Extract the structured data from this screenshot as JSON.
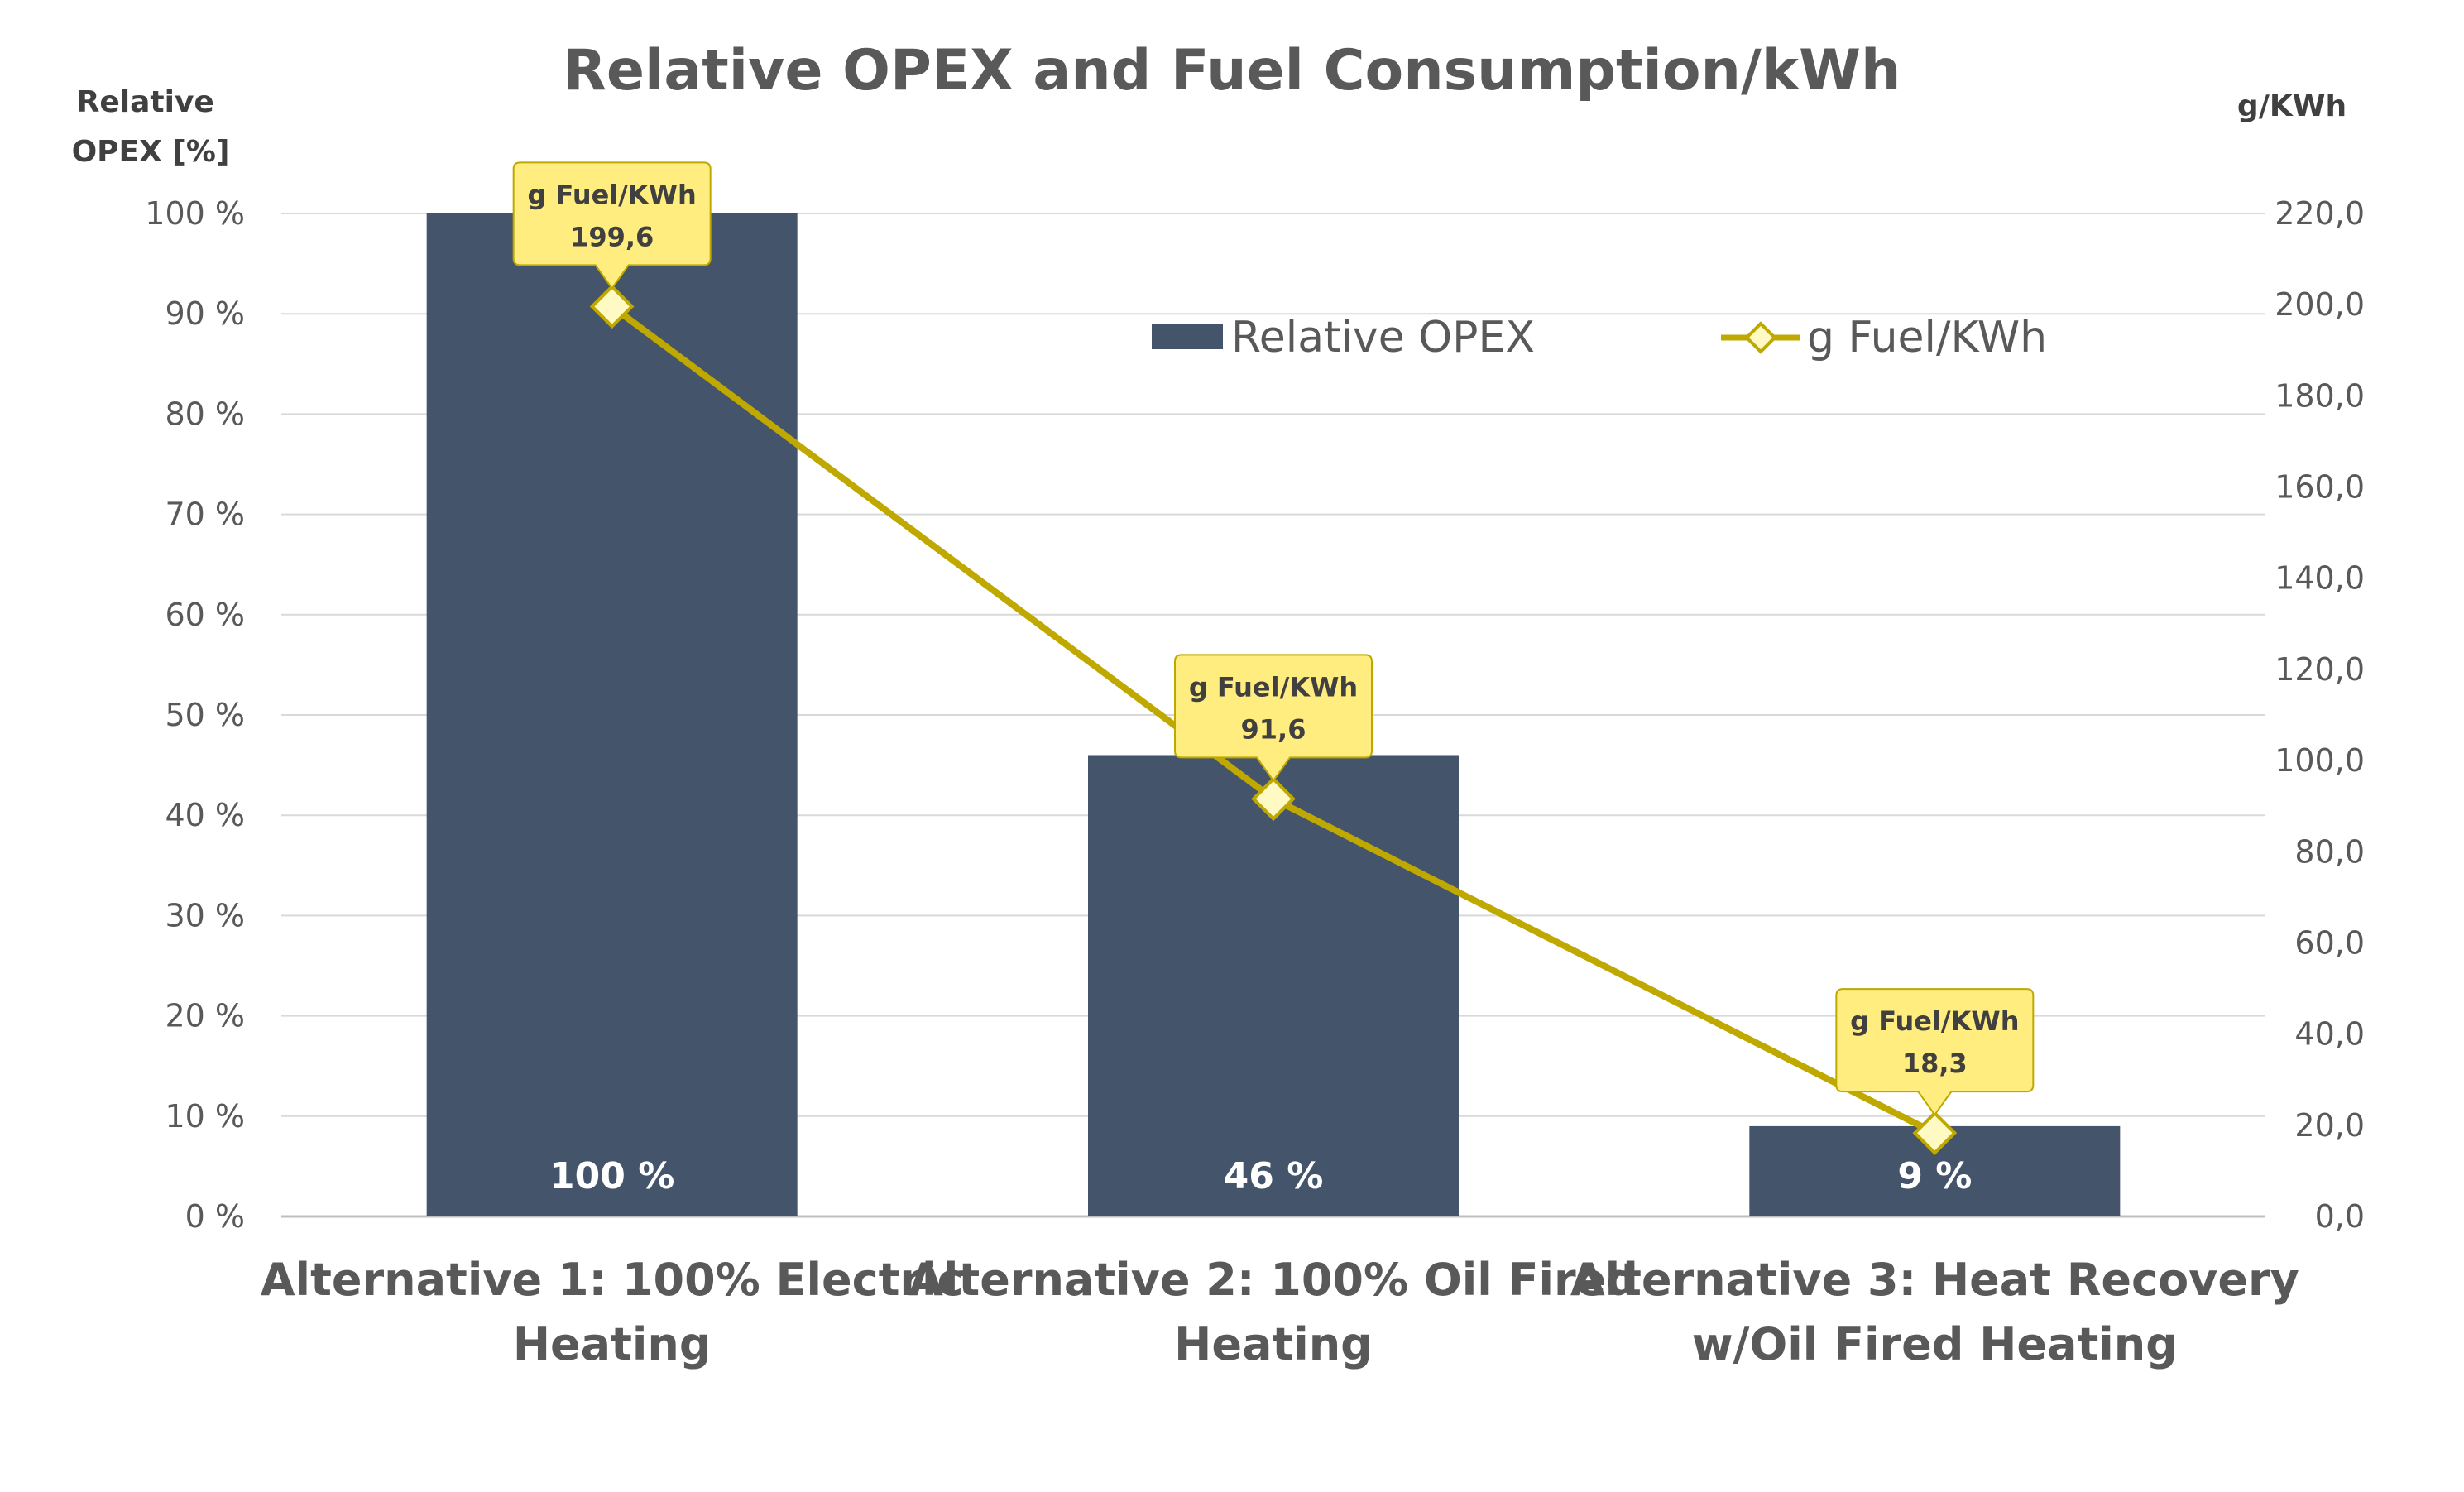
{
  "chart_data": {
    "type": "bar",
    "title": "Relative OPEX and Fuel Consumption/kWh",
    "ylabel": [
      "Relative",
      "OPEX [%]"
    ],
    "y2label": "g/KWh",
    "categories": [
      [
        "Alternative 1: 100% Electric",
        "Heating"
      ],
      [
        "Alternative 2: 100% Oil Fired",
        "Heating"
      ],
      [
        "Alternative 3: Heat Recovery",
        "w/Oil Fired Heating"
      ]
    ],
    "ylim": [
      0,
      100
    ],
    "y2lim": [
      0,
      220
    ],
    "y_ticks": [
      "0 %",
      "10 %",
      "20 %",
      "30 %",
      "40 %",
      "50 %",
      "60 %",
      "70 %",
      "80 %",
      "90 %",
      "100 %"
    ],
    "y2_ticks": [
      "0,0",
      "20,0",
      "40,0",
      "60,0",
      "80,0",
      "100,0",
      "120,0",
      "140,0",
      "160,0",
      "180,0",
      "200,0",
      "220,0"
    ],
    "grid": true,
    "legend_position": "top-right",
    "series": [
      {
        "name": "Relative OPEX",
        "kind": "bar",
        "axis": "left",
        "values": [
          100,
          46,
          9
        ],
        "labels": [
          "100 %",
          "46 %",
          "9 %"
        ],
        "color": "#44546A"
      },
      {
        "name": "g Fuel/KWh",
        "kind": "line",
        "axis": "right",
        "values": [
          199.6,
          91.6,
          18.3
        ],
        "labels": [
          "199,6",
          "91,6",
          "18,3"
        ],
        "callout_title": "g Fuel/KWh",
        "color": "#BFA800",
        "marker_fill": "#FFF9C4",
        "callout_fill": "#FFED7F"
      }
    ]
  }
}
